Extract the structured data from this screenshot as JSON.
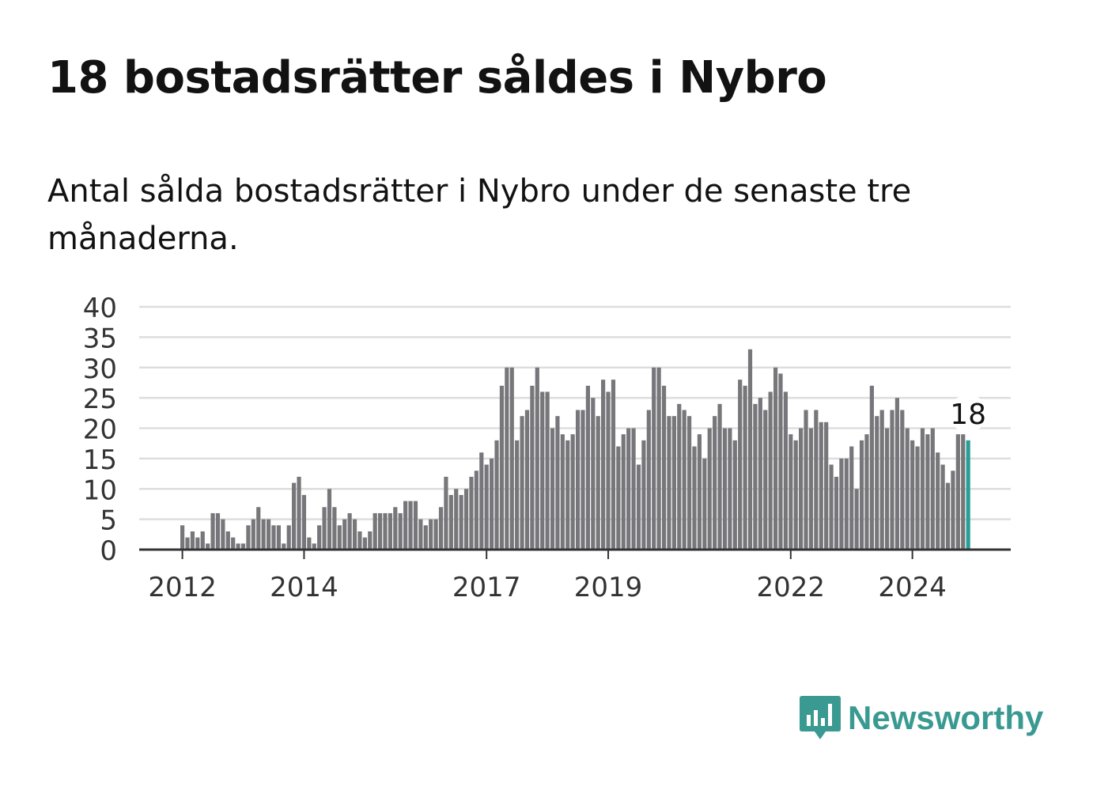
{
  "header": {
    "title": "18 bostadsrätter såldes i Nybro",
    "subtitle": "Antal sålda bostadsrätter i Nybro under de senaste tre månaderna."
  },
  "brand": {
    "name": "Newsworthy",
    "logo_icon": "bar-chart-speech-bubble-icon",
    "color": "#3a9a92"
  },
  "colors": {
    "bar": "#77777b",
    "highlight": "#2a9d96",
    "grid": "#dddddd",
    "axis": "#333333"
  },
  "chart_data": {
    "type": "bar",
    "x_start": "2012-01",
    "x_end": "2025-02",
    "ylim": [
      0,
      40
    ],
    "yticks": [
      0,
      5,
      10,
      15,
      20,
      25,
      30,
      35,
      40
    ],
    "xticks": [
      "2012",
      "2014",
      "2017",
      "2019",
      "2022",
      "2024"
    ],
    "xlabel": "",
    "ylabel": "",
    "grid": true,
    "highlight_label": "18",
    "values": [
      4,
      2,
      3,
      2,
      3,
      1,
      6,
      6,
      5,
      3,
      2,
      1,
      1,
      4,
      5,
      7,
      5,
      5,
      4,
      4,
      1,
      4,
      11,
      12,
      9,
      2,
      1,
      4,
      7,
      10,
      7,
      4,
      5,
      6,
      5,
      3,
      2,
      3,
      6,
      6,
      6,
      6,
      7,
      6,
      8,
      8,
      8,
      5,
      4,
      5,
      5,
      7,
      12,
      9,
      10,
      9,
      10,
      12,
      13,
      16,
      14,
      15,
      18,
      27,
      30,
      30,
      18,
      22,
      23,
      27,
      30,
      26,
      26,
      20,
      22,
      19,
      18,
      19,
      23,
      23,
      27,
      25,
      22,
      28,
      26,
      28,
      17,
      19,
      20,
      20,
      14,
      18,
      23,
      30,
      30,
      27,
      22,
      22,
      24,
      23,
      22,
      17,
      19,
      15,
      20,
      22,
      24,
      20,
      20,
      18,
      28,
      27,
      33,
      24,
      25,
      23,
      26,
      30,
      29,
      26,
      19,
      18,
      20,
      23,
      20,
      23,
      21,
      21,
      14,
      12,
      15,
      15,
      17,
      10,
      18,
      19,
      27,
      22,
      23,
      20,
      23,
      25,
      23,
      20,
      18,
      17,
      20,
      19,
      20,
      16,
      14,
      11,
      13,
      19,
      19,
      18
    ]
  }
}
